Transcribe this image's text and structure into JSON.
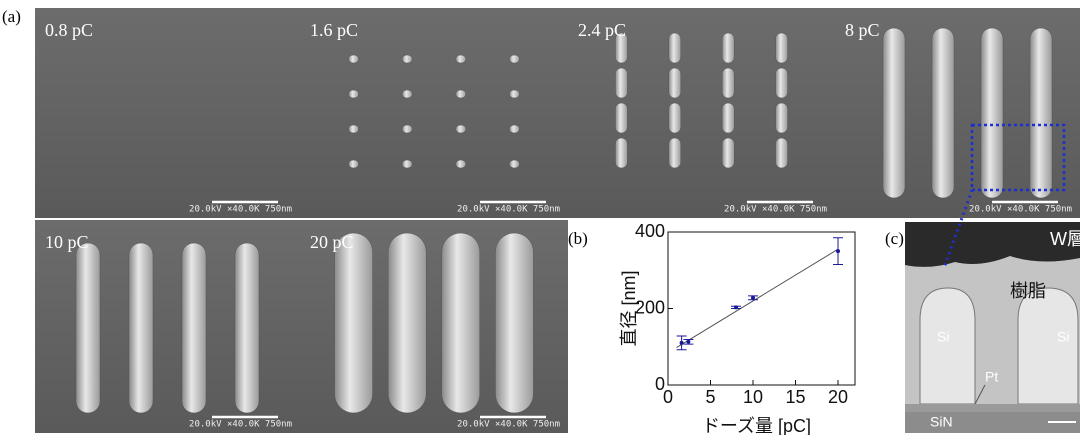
{
  "figure_label": "(a)",
  "sem_images": [
    {
      "dose": "0.8 pC",
      "scale_text": "20.0kV ×40.0K  750nm"
    },
    {
      "dose": "1.6 pC",
      "scale_text": "20.0kV ×40.0K  750nm"
    },
    {
      "dose": "2.4 pC",
      "scale_text": "20.0kV ×40.0K  750nm"
    },
    {
      "dose": "8 pC",
      "scale_text": "20.0kV ×40.0K  750nm"
    },
    {
      "dose": "10 pC",
      "scale_text": "20.0kV ×40.0K  750nm"
    },
    {
      "dose": "20 pC",
      "scale_text": "20.0kV ×40.0K  750nm"
    }
  ],
  "chart_data": {
    "type": "scatter",
    "panel_label": "(b)",
    "x_label": "ドーズ量 [pC]",
    "y_label": "直径 [nm]",
    "xlim": [
      0,
      22
    ],
    "ylim": [
      0,
      400
    ],
    "xticks": [
      0,
      5,
      10,
      15,
      20
    ],
    "yticks": [
      0,
      200,
      400
    ],
    "series": [
      {
        "color": "#1a1a9a",
        "x": [
          1.6,
          2.4,
          8,
          10,
          20
        ],
        "values": [
          110,
          113,
          203,
          228,
          350
        ],
        "errors": [
          18,
          6,
          3,
          5,
          35
        ]
      }
    ],
    "fit": {
      "color": "#555555",
      "x": [
        1,
        20
      ],
      "values": [
        98,
        355
      ]
    }
  },
  "cross_section": {
    "panel_label": "(c)",
    "labels": [
      "W層",
      "樹脂",
      "Si",
      "Si",
      "Pt",
      "SiN"
    ]
  }
}
